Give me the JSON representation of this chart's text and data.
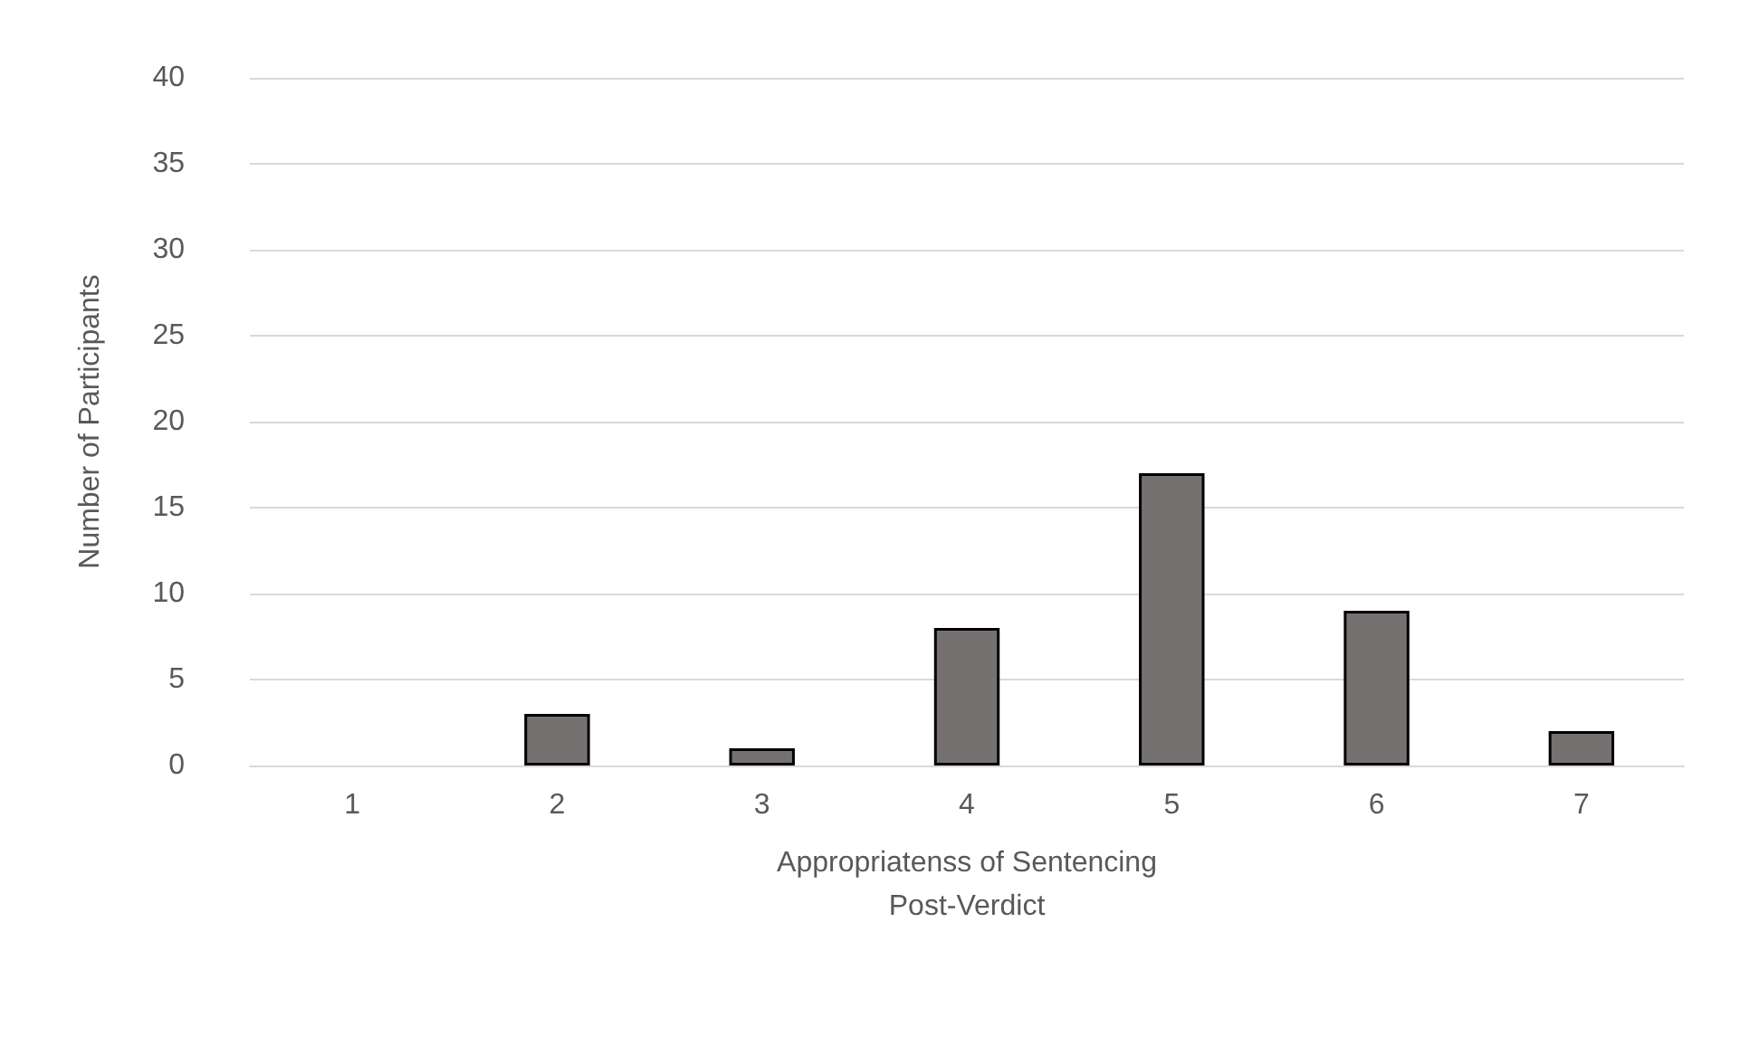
{
  "chart_data": {
    "type": "bar",
    "xlabel": "Appropriatenss of Sentencing\nPost-Verdict",
    "ylabel": "Number of Participants",
    "categories": [
      "1",
      "2",
      "3",
      "4",
      "5",
      "6",
      "7"
    ],
    "values": [
      0,
      3,
      1,
      8,
      17,
      9,
      2
    ],
    "color": "#767171",
    "ylim": [
      0,
      40
    ],
    "yticks": [
      0,
      5,
      10,
      15,
      20,
      25,
      30,
      35,
      40
    ],
    "grid": "y"
  }
}
